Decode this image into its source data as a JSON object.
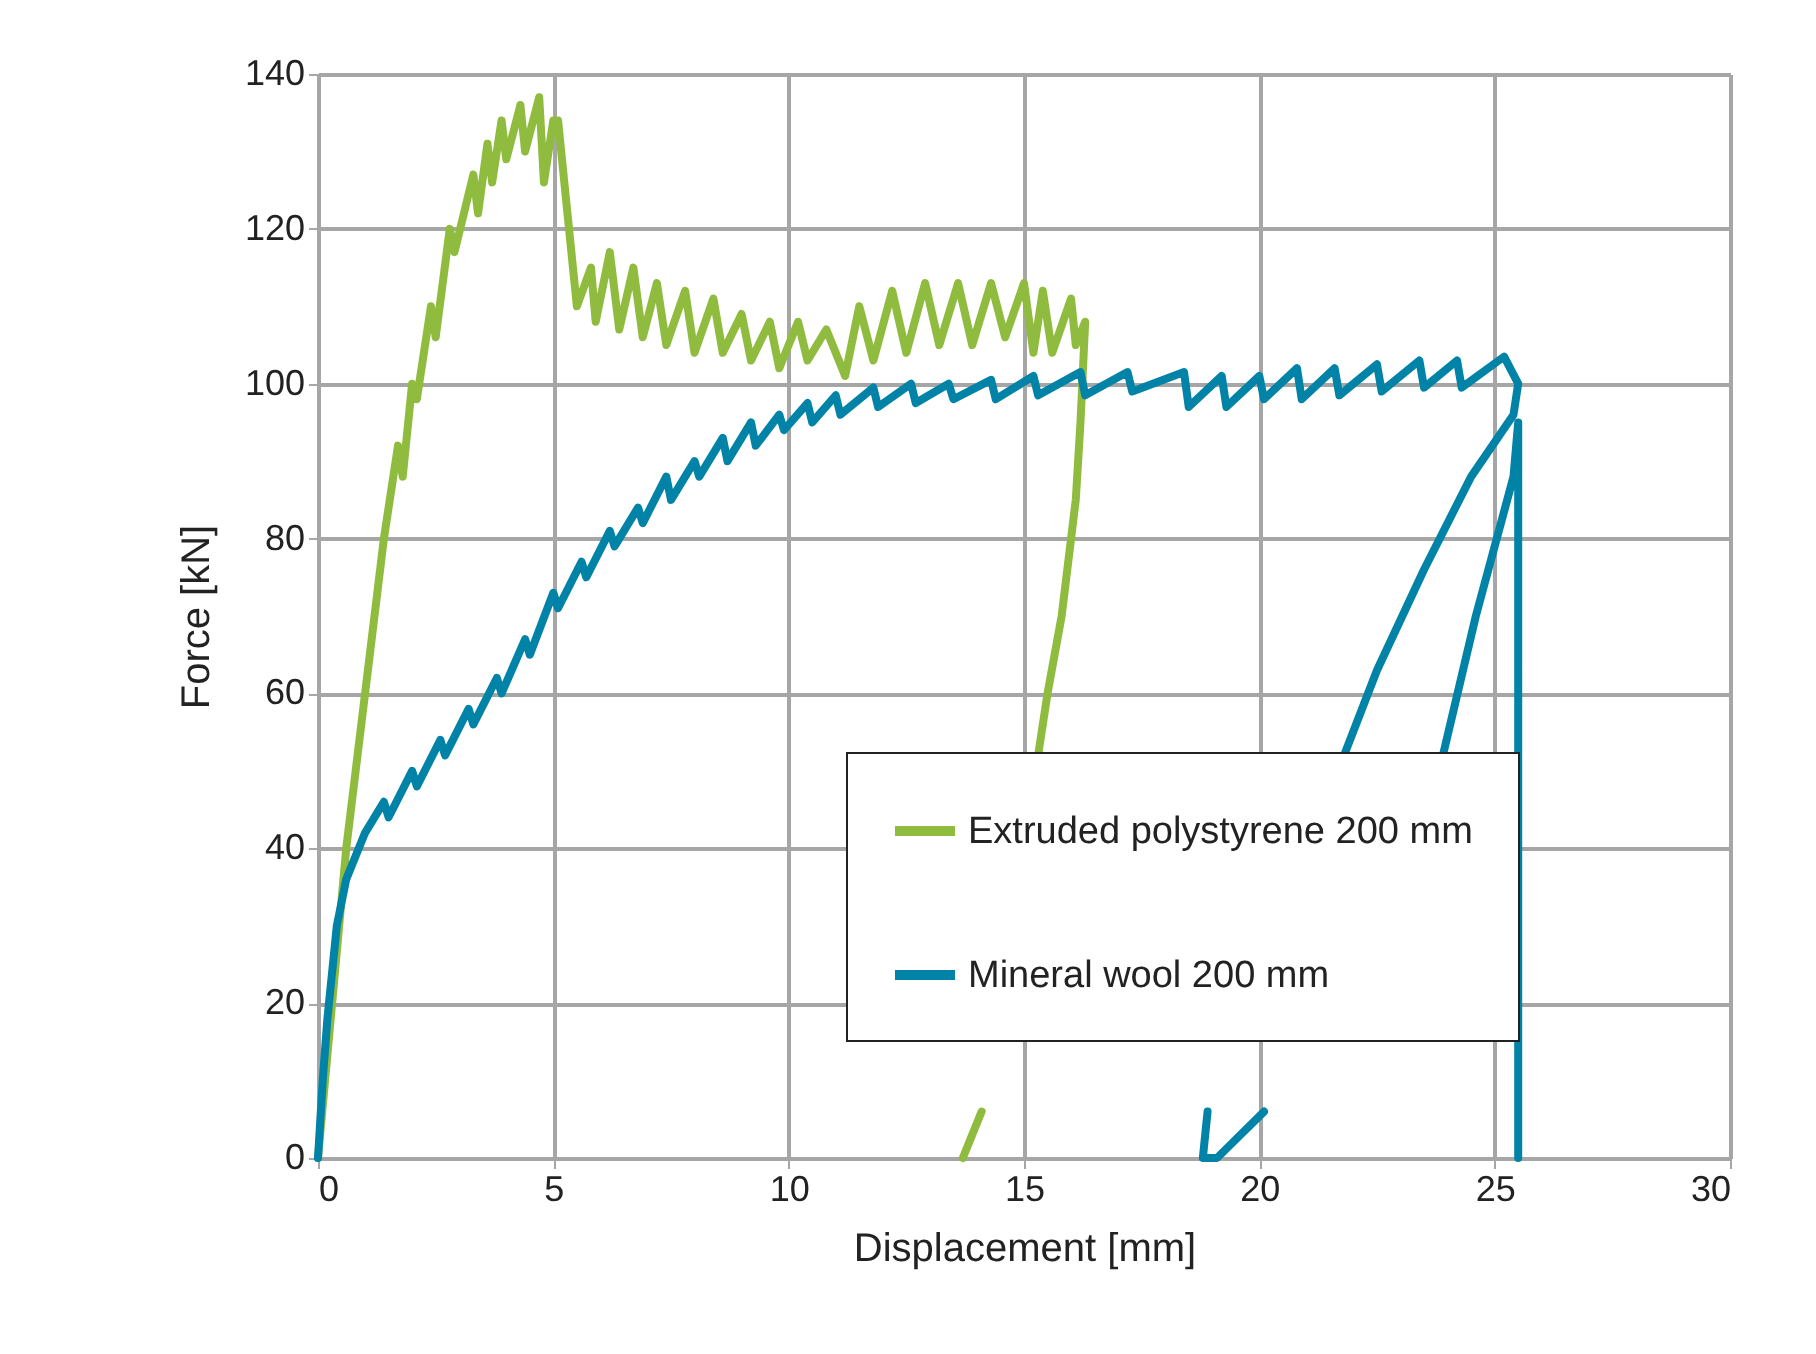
{
  "chart_data": {
    "type": "line",
    "xlabel": "Displacement [mm]",
    "ylabel": "Force [kN]",
    "xlim": [
      0,
      30
    ],
    "ylim": [
      0,
      140
    ],
    "xticks": [
      0,
      5,
      10,
      15,
      20,
      25,
      30
    ],
    "yticks": [
      0,
      20,
      40,
      60,
      80,
      100,
      120,
      140
    ],
    "grid": true,
    "legend": "bottom right",
    "line_style": "solid",
    "marker": "none",
    "series": [
      {
        "name": "Extruded polystyrene 200 mm",
        "color": "#8fbc3f",
        "x": [
          0,
          0.3,
          0.6,
          0.8,
          1.1,
          1.4,
          1.7,
          1.8,
          2.0,
          2.1,
          2.4,
          2.5,
          2.8,
          2.9,
          3.3,
          3.4,
          3.6,
          3.7,
          3.9,
          4.0,
          4.3,
          4.4,
          4.7,
          4.8,
          5.0,
          5.1,
          5.5,
          5.8,
          5.9,
          6.2,
          6.4,
          6.7,
          6.9,
          7.2,
          7.4,
          7.8,
          8.0,
          8.4,
          8.6,
          9.0,
          9.2,
          9.6,
          9.8,
          10.2,
          10.4,
          10.8,
          11.2,
          11.5,
          11.8,
          12.2,
          12.5,
          12.9,
          13.2,
          13.6,
          13.9,
          14.3,
          14.6,
          15.0,
          15.2,
          15.4,
          15.6,
          16.0,
          16.1,
          16.3,
          16.2,
          16.1,
          15.8,
          15.5,
          15.3,
          14.7,
          14.1,
          13.7
        ],
        "values": [
          0,
          20,
          40,
          50,
          65,
          80,
          92,
          88,
          100,
          98,
          110,
          106,
          120,
          117,
          127,
          122,
          131,
          126,
          134,
          129,
          136,
          130,
          137,
          126,
          134,
          134,
          110,
          115,
          108,
          117,
          107,
          115,
          106,
          113,
          105,
          112,
          104,
          111,
          104,
          109,
          103,
          108,
          102,
          108,
          103,
          107,
          101,
          110,
          103,
          112,
          104,
          113,
          105,
          113,
          105,
          113,
          106,
          113,
          104,
          112,
          104,
          111,
          105,
          108,
          95,
          85,
          70,
          60,
          52,
          null,
          6,
          0
        ]
      },
      {
        "name": "Mineral wool 200 mm",
        "color": "#0083a6",
        "x": [
          0,
          0.1,
          0.2,
          0.4,
          0.6,
          1.0,
          1.4,
          1.5,
          2.0,
          2.1,
          2.6,
          2.7,
          3.2,
          3.3,
          3.8,
          3.9,
          4.4,
          4.5,
          5.0,
          5.1,
          5.6,
          5.7,
          6.2,
          6.3,
          6.8,
          6.9,
          7.4,
          7.5,
          8.0,
          8.1,
          8.6,
          8.7,
          9.2,
          9.3,
          9.8,
          9.9,
          10.4,
          10.5,
          11.0,
          11.1,
          11.8,
          11.9,
          12.6,
          12.7,
          13.4,
          13.5,
          14.3,
          14.4,
          15.2,
          15.3,
          16.2,
          16.3,
          17.2,
          17.3,
          18.4,
          18.5,
          19.2,
          19.3,
          20.0,
          20.1,
          20.8,
          20.9,
          21.6,
          21.7,
          22.5,
          22.6,
          23.4,
          23.5,
          24.2,
          24.3,
          25.2,
          25.5,
          25.4,
          24.5,
          23.5,
          22.5,
          21.8,
          20.3,
          18.9,
          18.8,
          19.1,
          20.1,
          22.0,
          23.9,
          24.6,
          25.4,
          25.5,
          25.5
        ],
        "values": [
          0,
          10,
          18,
          30,
          36,
          42,
          46,
          44,
          50,
          48,
          54,
          52,
          58,
          56,
          62,
          60,
          67,
          65,
          73,
          71,
          77,
          75,
          81,
          79,
          84,
          82,
          88,
          85,
          90,
          88,
          93,
          90,
          95,
          92,
          96,
          94,
          97.5,
          95,
          98.5,
          96,
          99.5,
          97,
          100,
          97.5,
          100,
          98,
          100.5,
          98,
          101,
          98.5,
          101.5,
          98.5,
          101.5,
          99,
          101.5,
          97,
          101,
          97,
          101,
          98,
          102,
          98,
          102,
          98.5,
          102.5,
          99,
          103,
          99.5,
          103,
          99.5,
          103.5,
          100,
          96,
          88,
          76,
          63,
          52,
          null,
          6,
          0,
          0,
          6,
          null,
          52,
          70,
          88,
          95,
          0
        ]
      }
    ]
  }
}
